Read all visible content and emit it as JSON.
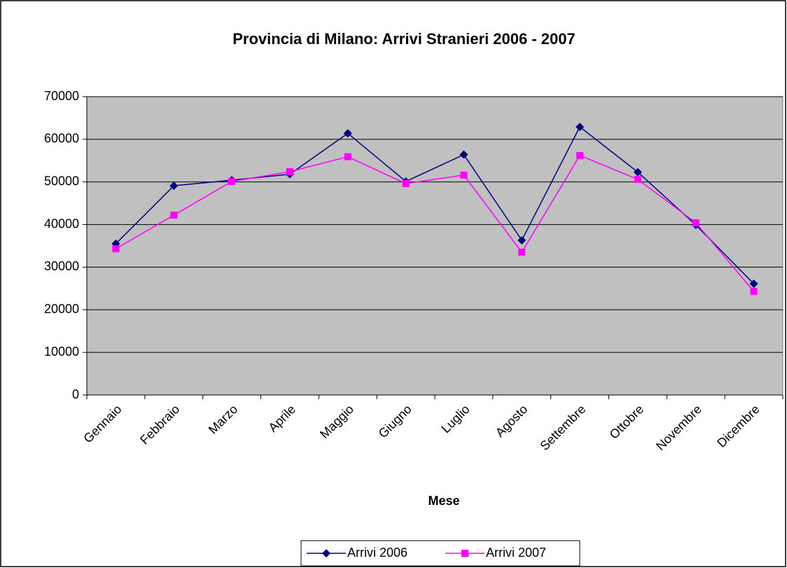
{
  "chart_data": {
    "type": "line",
    "title": "Provincia di Milano: Arrivi Stranieri 2006 - 2007",
    "x_label": "Mese",
    "categories": [
      "Gennaio",
      "Febbraio",
      "Marzo",
      "Aprile",
      "Maggio",
      "Giugno",
      "Luglio",
      "Agosto",
      "Settembre",
      "Ottobre",
      "Novembre",
      "Dicembre"
    ],
    "series": [
      {
        "name": "Arrivi 2006",
        "color": "#000080",
        "marker": "diamond",
        "values": [
          35500,
          49100,
          50400,
          51800,
          61400,
          50100,
          56400,
          36300,
          62900,
          52300,
          39900,
          26100
        ]
      },
      {
        "name": "Arrivi 2007",
        "color": "#ff00ff",
        "marker": "square",
        "values": [
          34300,
          42200,
          50100,
          52400,
          55900,
          49600,
          51600,
          33500,
          56200,
          50600,
          40400,
          24300
        ]
      }
    ],
    "ylim": [
      0,
      70000
    ],
    "yticks": [
      0,
      10000,
      20000,
      30000,
      40000,
      50000,
      60000,
      70000
    ],
    "grid": true,
    "legend": "bottom"
  }
}
